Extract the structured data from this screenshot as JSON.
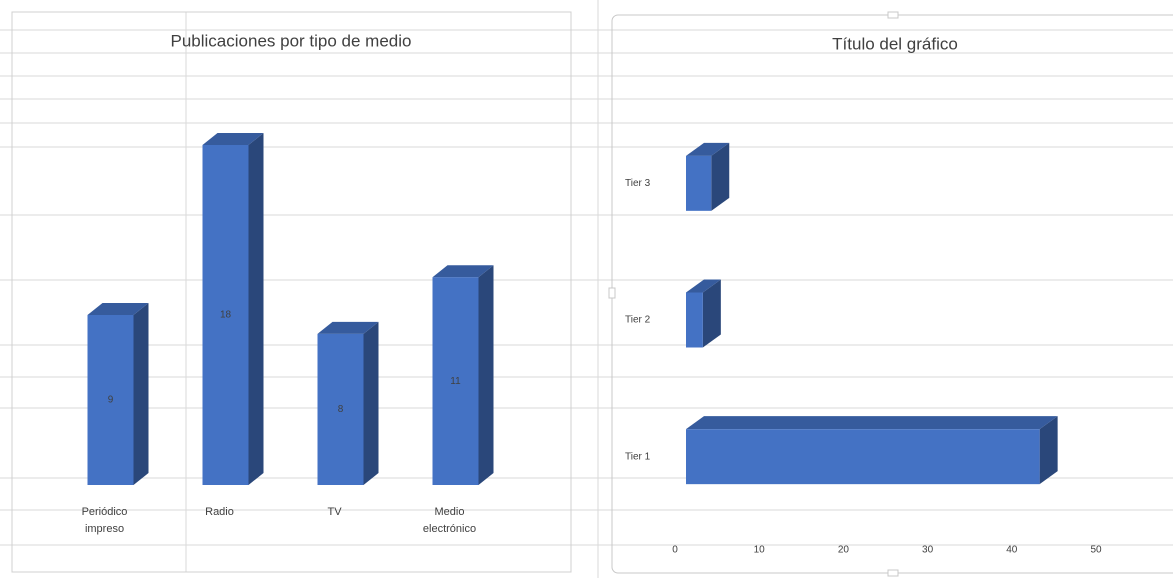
{
  "chart_data": [
    {
      "type": "bar3d",
      "title": "Publicaciones por tipo de medio",
      "categories": [
        "Periódico impreso",
        "Radio",
        "TV",
        "Medio electrónico"
      ],
      "values": [
        9,
        18,
        8,
        11
      ],
      "color": "#4472c4"
    },
    {
      "type": "hbar3d",
      "title": "Título del gráfico",
      "categories": [
        "Tier 1",
        "Tier 2",
        "Tier 3"
      ],
      "values": [
        42,
        2,
        3
      ],
      "color": "#4472c4",
      "xlim": [
        0,
        50
      ],
      "xticks": [
        0,
        10,
        20,
        30,
        40,
        50
      ]
    }
  ]
}
